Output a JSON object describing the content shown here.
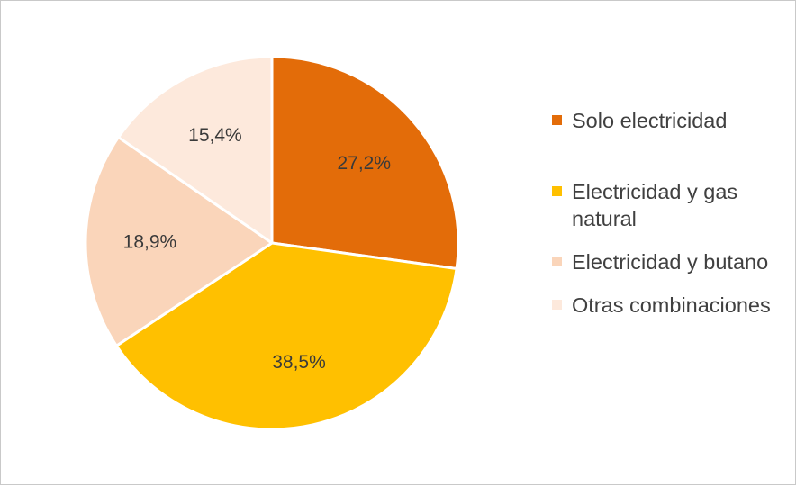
{
  "chart_data": {
    "type": "pie",
    "title": "",
    "legend_position": "right",
    "slices": [
      {
        "name": "Solo electricidad",
        "value": 27.2,
        "label": "27,2%",
        "color": "#E36C09"
      },
      {
        "name": "Electricidad y gas natural",
        "value": 38.5,
        "label": "38,5%",
        "color": "#FFC000"
      },
      {
        "name": "Electricidad y butano",
        "value": 18.9,
        "label": "18,9%",
        "color": "#FAD5BA"
      },
      {
        "name": "Otras combinaciones",
        "value": 15.4,
        "label": "15,4%",
        "color": "#FDE9DC"
      }
    ]
  }
}
